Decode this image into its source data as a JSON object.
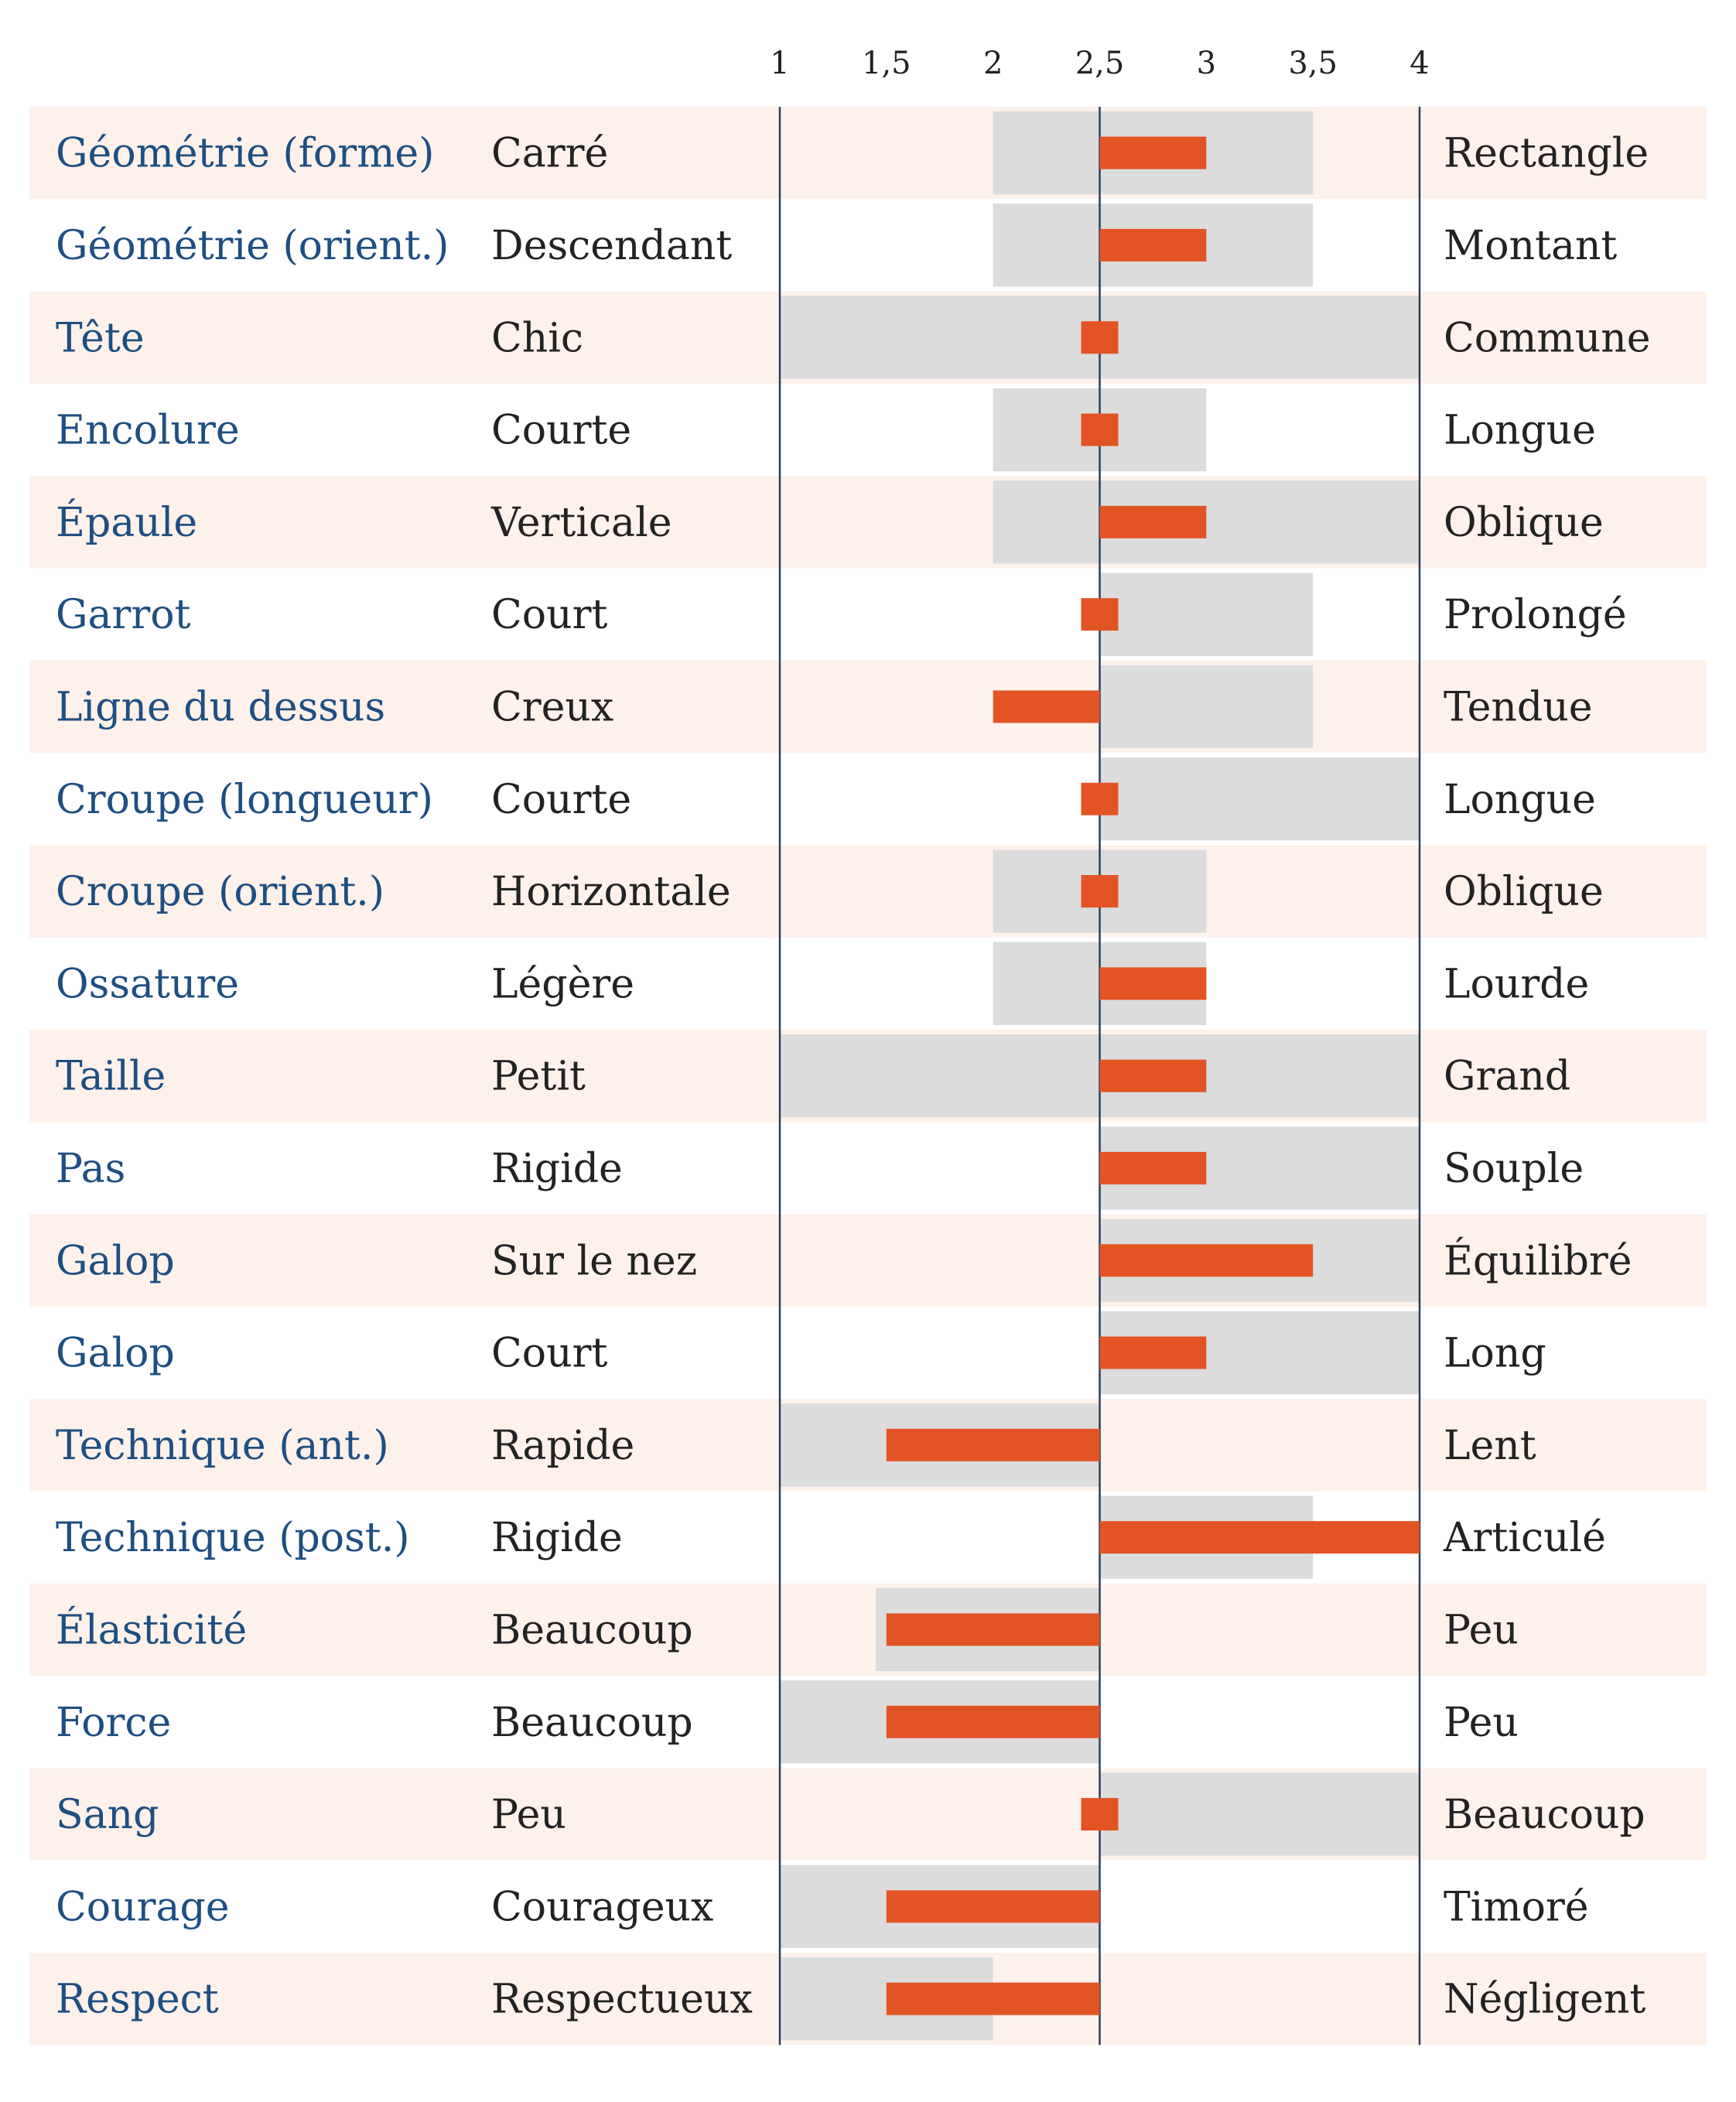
{
  "chart_data": {
    "type": "bar",
    "title": "",
    "xlim": [
      1,
      4
    ],
    "ticks": [
      "1",
      "1,5",
      "2",
      "2,5",
      "3",
      "3,5",
      "4"
    ],
    "tick_values": [
      1,
      1.5,
      2,
      2.5,
      3,
      3.5,
      4
    ],
    "reference_value": 2.5,
    "colors": {
      "label": "#1f4e80",
      "text": "#222222",
      "row_band": "#fcf1eb",
      "range": "#dcdcdc",
      "value_bar": "#e35424",
      "axis_line": "#2c3e5c"
    },
    "rows": [
      {
        "trait": "Géométrie (forme)",
        "low": "Carré",
        "high": "Rectangle",
        "range": [
          2,
          3.5
        ],
        "value": 3
      },
      {
        "trait": "Géométrie (orient.)",
        "low": "Descendant",
        "high": "Montant",
        "range": [
          2,
          3.5
        ],
        "value": 3
      },
      {
        "trait": "Tête",
        "low": "Chic",
        "high": "Commune",
        "range": [
          1,
          4
        ],
        "value": 2.5
      },
      {
        "trait": "Encolure",
        "low": "Courte",
        "high": "Longue",
        "range": [
          2,
          3
        ],
        "value": 2.5
      },
      {
        "trait": "Épaule",
        "low": "Verticale",
        "high": "Oblique",
        "range": [
          2,
          4
        ],
        "value": 3
      },
      {
        "trait": "Garrot",
        "low": "Court",
        "high": "Prolongé",
        "range": [
          2.5,
          3.5
        ],
        "value": 2.5
      },
      {
        "trait": "Ligne du dessus",
        "low": "Creux",
        "high": "Tendue",
        "range": [
          2.5,
          3.5
        ],
        "value": 2
      },
      {
        "trait": "Croupe (longueur)",
        "low": "Courte",
        "high": "Longue",
        "range": [
          2.5,
          4
        ],
        "value": 2.5
      },
      {
        "trait": "Croupe (orient.)",
        "low": "Horizontale",
        "high": "Oblique",
        "range": [
          2,
          3
        ],
        "value": 2.5
      },
      {
        "trait": "Ossature",
        "low": "Légère",
        "high": "Lourde",
        "range": [
          2,
          3
        ],
        "value": 3
      },
      {
        "trait": "Taille",
        "low": "Petit",
        "high": "Grand",
        "range": [
          1,
          4
        ],
        "value": 3
      },
      {
        "trait": "Pas",
        "low": "Rigide",
        "high": "Souple",
        "range": [
          2.5,
          4
        ],
        "value": 3
      },
      {
        "trait": "Galop",
        "low": "Sur le nez",
        "high": "Équilibré",
        "range": [
          2.5,
          4
        ],
        "value": 3.5
      },
      {
        "trait": "Galop",
        "low": "Court",
        "high": "Long",
        "range": [
          2.5,
          4
        ],
        "value": 3
      },
      {
        "trait": "Technique (ant.)",
        "low": "Rapide",
        "high": "Lent",
        "range": [
          1,
          2.5
        ],
        "value": 1.5
      },
      {
        "trait": "Technique (post.)",
        "low": "Rigide",
        "high": "Articulé",
        "range": [
          2.5,
          3.5
        ],
        "value": 4
      },
      {
        "trait": "Élasticité",
        "low": "Beaucoup",
        "high": "Peu",
        "range": [
          1.45,
          2.5
        ],
        "value": 1.5
      },
      {
        "trait": "Force",
        "low": "Beaucoup",
        "high": "Peu",
        "range": [
          1,
          2.5
        ],
        "value": 1.5
      },
      {
        "trait": "Sang",
        "low": "Peu",
        "high": "Beaucoup",
        "range": [
          2.5,
          4
        ],
        "value": 2.5
      },
      {
        "trait": "Courage",
        "low": "Courageux",
        "high": "Timoré",
        "range": [
          1,
          2.5
        ],
        "value": 1.5
      },
      {
        "trait": "Respect",
        "low": "Respectueux",
        "high": "Négligent",
        "range": [
          1,
          2
        ],
        "value": 1.5
      }
    ]
  }
}
